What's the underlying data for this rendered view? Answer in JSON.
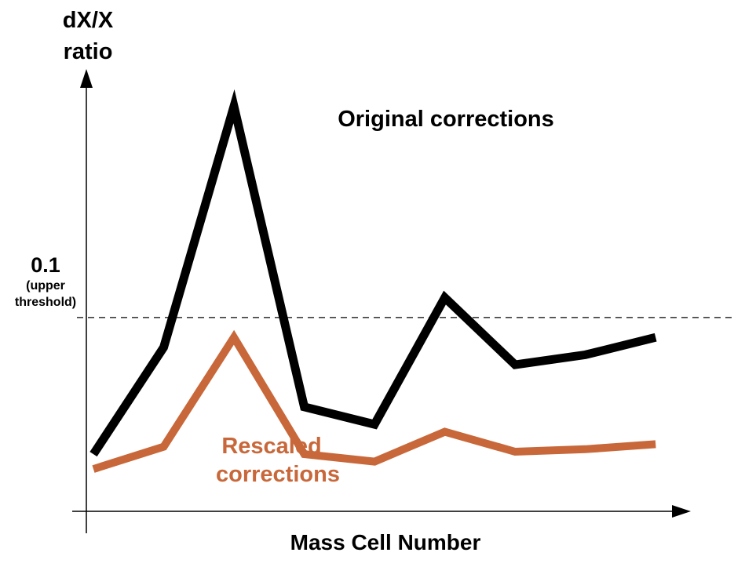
{
  "chart_data": {
    "type": "line",
    "ylabel": [
      "dX/X",
      "ratio"
    ],
    "xlabel": "Mass Cell Number",
    "threshold": {
      "value": "0.1",
      "label": [
        "(upper",
        "threshold)"
      ]
    },
    "x": [
      1,
      2,
      3,
      4,
      5,
      6,
      7,
      8,
      9
    ],
    "series": [
      {
        "name": "Original corrections",
        "color": "#000000",
        "values": [
          0.045,
          0.088,
          0.185,
          0.064,
          0.057,
          0.108,
          0.081,
          0.085,
          0.092
        ]
      },
      {
        "name": "Rescaled corrections",
        "color": "#c8683a",
        "values": [
          0.039,
          0.048,
          0.092,
          0.045,
          0.042,
          0.054,
          0.046,
          0.047,
          0.049
        ]
      }
    ],
    "xlim": [
      0.9,
      9.5
    ],
    "ylim": [
      0.022,
      0.2
    ],
    "grid": false
  }
}
